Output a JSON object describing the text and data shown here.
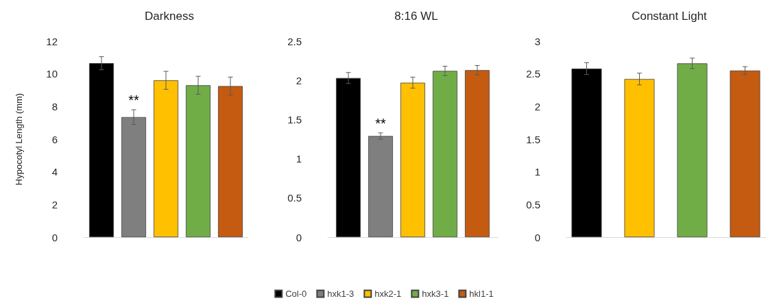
{
  "chart_data": [
    {
      "type": "bar",
      "title": "Darkness",
      "ylabel": "Hypocotyl Length (mm)",
      "categories": [
        null
      ],
      "ylim": [
        0,
        12
      ],
      "yticks": [
        0,
        2,
        4,
        6,
        8,
        10,
        12
      ],
      "tick_labels": "y",
      "grid": false,
      "legend": "bottom",
      "annotations": [
        "**"
      ],
      "series": [
        {
          "name": "Col-0",
          "color": "#000000",
          "values": [
            10.65
          ],
          "errors": [
            0.4
          ]
        },
        {
          "name": "hxk1-3",
          "color": "#7f7f7f",
          "values": [
            7.35
          ],
          "errors": [
            0.45
          ]
        },
        {
          "name": "hxk2-1",
          "color": "#ffc000",
          "values": [
            9.6
          ],
          "errors": [
            0.55
          ]
        },
        {
          "name": "hxk3-1",
          "color": "#70ad47",
          "values": [
            9.3
          ],
          "errors": [
            0.55
          ]
        },
        {
          "name": "hkl1-1",
          "color": "#c55a11",
          "values": [
            9.25
          ],
          "errors": [
            0.55
          ]
        }
      ]
    },
    {
      "type": "bar",
      "title": "8:16 WL",
      "categories": [
        null
      ],
      "ylim": [
        0,
        2.5
      ],
      "yticks": [
        0,
        0.5,
        1,
        1.5,
        2,
        2.5
      ],
      "tick_labels": "y",
      "grid": false,
      "annotations": [
        "**"
      ],
      "series": [
        {
          "color": "#000000",
          "values": [
            2.03
          ],
          "errors": [
            0.07
          ]
        },
        {
          "color": "#7f7f7f",
          "values": [
            1.29
          ],
          "errors": [
            0.04
          ]
        },
        {
          "color": "#ffc000",
          "values": [
            1.97
          ],
          "errors": [
            0.07
          ]
        },
        {
          "color": "#70ad47",
          "values": [
            2.12
          ],
          "errors": [
            0.06
          ]
        },
        {
          "color": "#c55a11",
          "values": [
            2.13
          ],
          "errors": [
            0.06
          ]
        }
      ]
    },
    {
      "type": "bar",
      "title": "Constant Light",
      "categories": [
        null
      ],
      "ylim": [
        0,
        3
      ],
      "yticks": [
        0,
        0.5,
        1,
        1.5,
        2,
        2.5,
        3
      ],
      "tick_labels": "y",
      "grid": false,
      "series": [
        {
          "color": "#000000",
          "values": [
            2.58
          ],
          "errors": [
            0.09
          ]
        },
        {
          "color": "#ffc000",
          "values": [
            2.42
          ],
          "errors": [
            0.09
          ]
        },
        {
          "color": "#70ad47",
          "values": [
            2.66
          ],
          "errors": [
            0.08
          ]
        },
        {
          "color": "#c55a11",
          "values": [
            2.55
          ],
          "errors": [
            0.06
          ]
        }
      ]
    }
  ]
}
